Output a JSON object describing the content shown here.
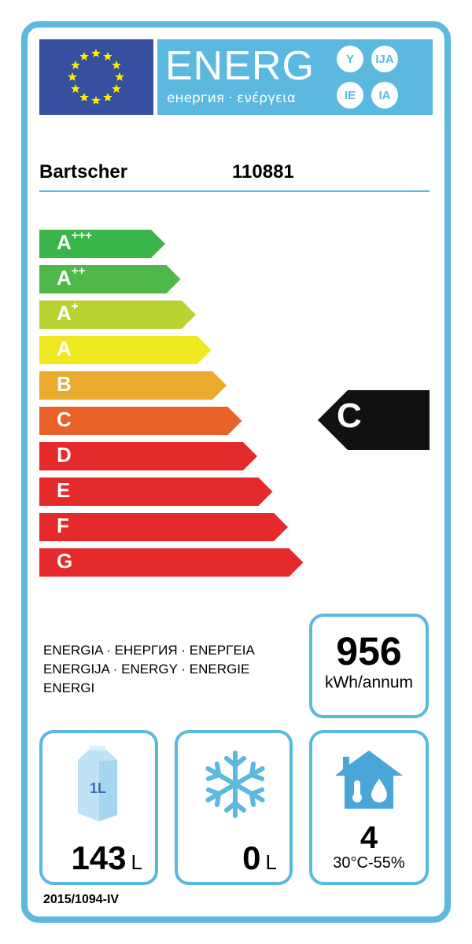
{
  "header": {
    "logo_text": "ENERG",
    "subtitle": "енергия · ενέργεια",
    "suffixes": [
      "Y",
      "IJA",
      "IE",
      "IA"
    ]
  },
  "supplier": "Bartscher",
  "model": "110881",
  "scale": [
    {
      "label": "A",
      "sup": "+++",
      "color": "#3ab54a"
    },
    {
      "label": "A",
      "sup": "++",
      "color": "#4fb848"
    },
    {
      "label": "A",
      "sup": "+",
      "color": "#b8d432"
    },
    {
      "label": "A",
      "sup": "",
      "color": "#eee921"
    },
    {
      "label": "B",
      "sup": "",
      "color": "#eaab2f"
    },
    {
      "label": "C",
      "sup": "",
      "color": "#e8622a"
    },
    {
      "label": "D",
      "sup": "",
      "color": "#e52a2b"
    },
    {
      "label": "E",
      "sup": "",
      "color": "#e52a2b"
    },
    {
      "label": "F",
      "sup": "",
      "color": "#e52a2b"
    },
    {
      "label": "G",
      "sup": "",
      "color": "#e52a2b"
    }
  ],
  "rating": "C",
  "energy_words": [
    "ENERGIA · ЕНЕРГИЯ · ΕΝΕΡΓΕΙΑ",
    "ENERGIJA · ENERGY · ENERGIE",
    "ENERGI"
  ],
  "consumption": {
    "value": "956",
    "unit": "kWh/annum"
  },
  "chilled": {
    "icon": "milk-carton-icon",
    "carton_label": "1L",
    "value": "143",
    "unit": "L"
  },
  "frozen": {
    "icon": "snowflake-icon",
    "value": "0",
    "unit": "L"
  },
  "climate": {
    "icon": "house-climate-icon",
    "value": "4",
    "range": "30°C-55%"
  },
  "regulation": "2015/1094-IV",
  "colors": {
    "frame": "#5bb8df",
    "flag": "#364f9f",
    "stars": "#ffed00"
  }
}
